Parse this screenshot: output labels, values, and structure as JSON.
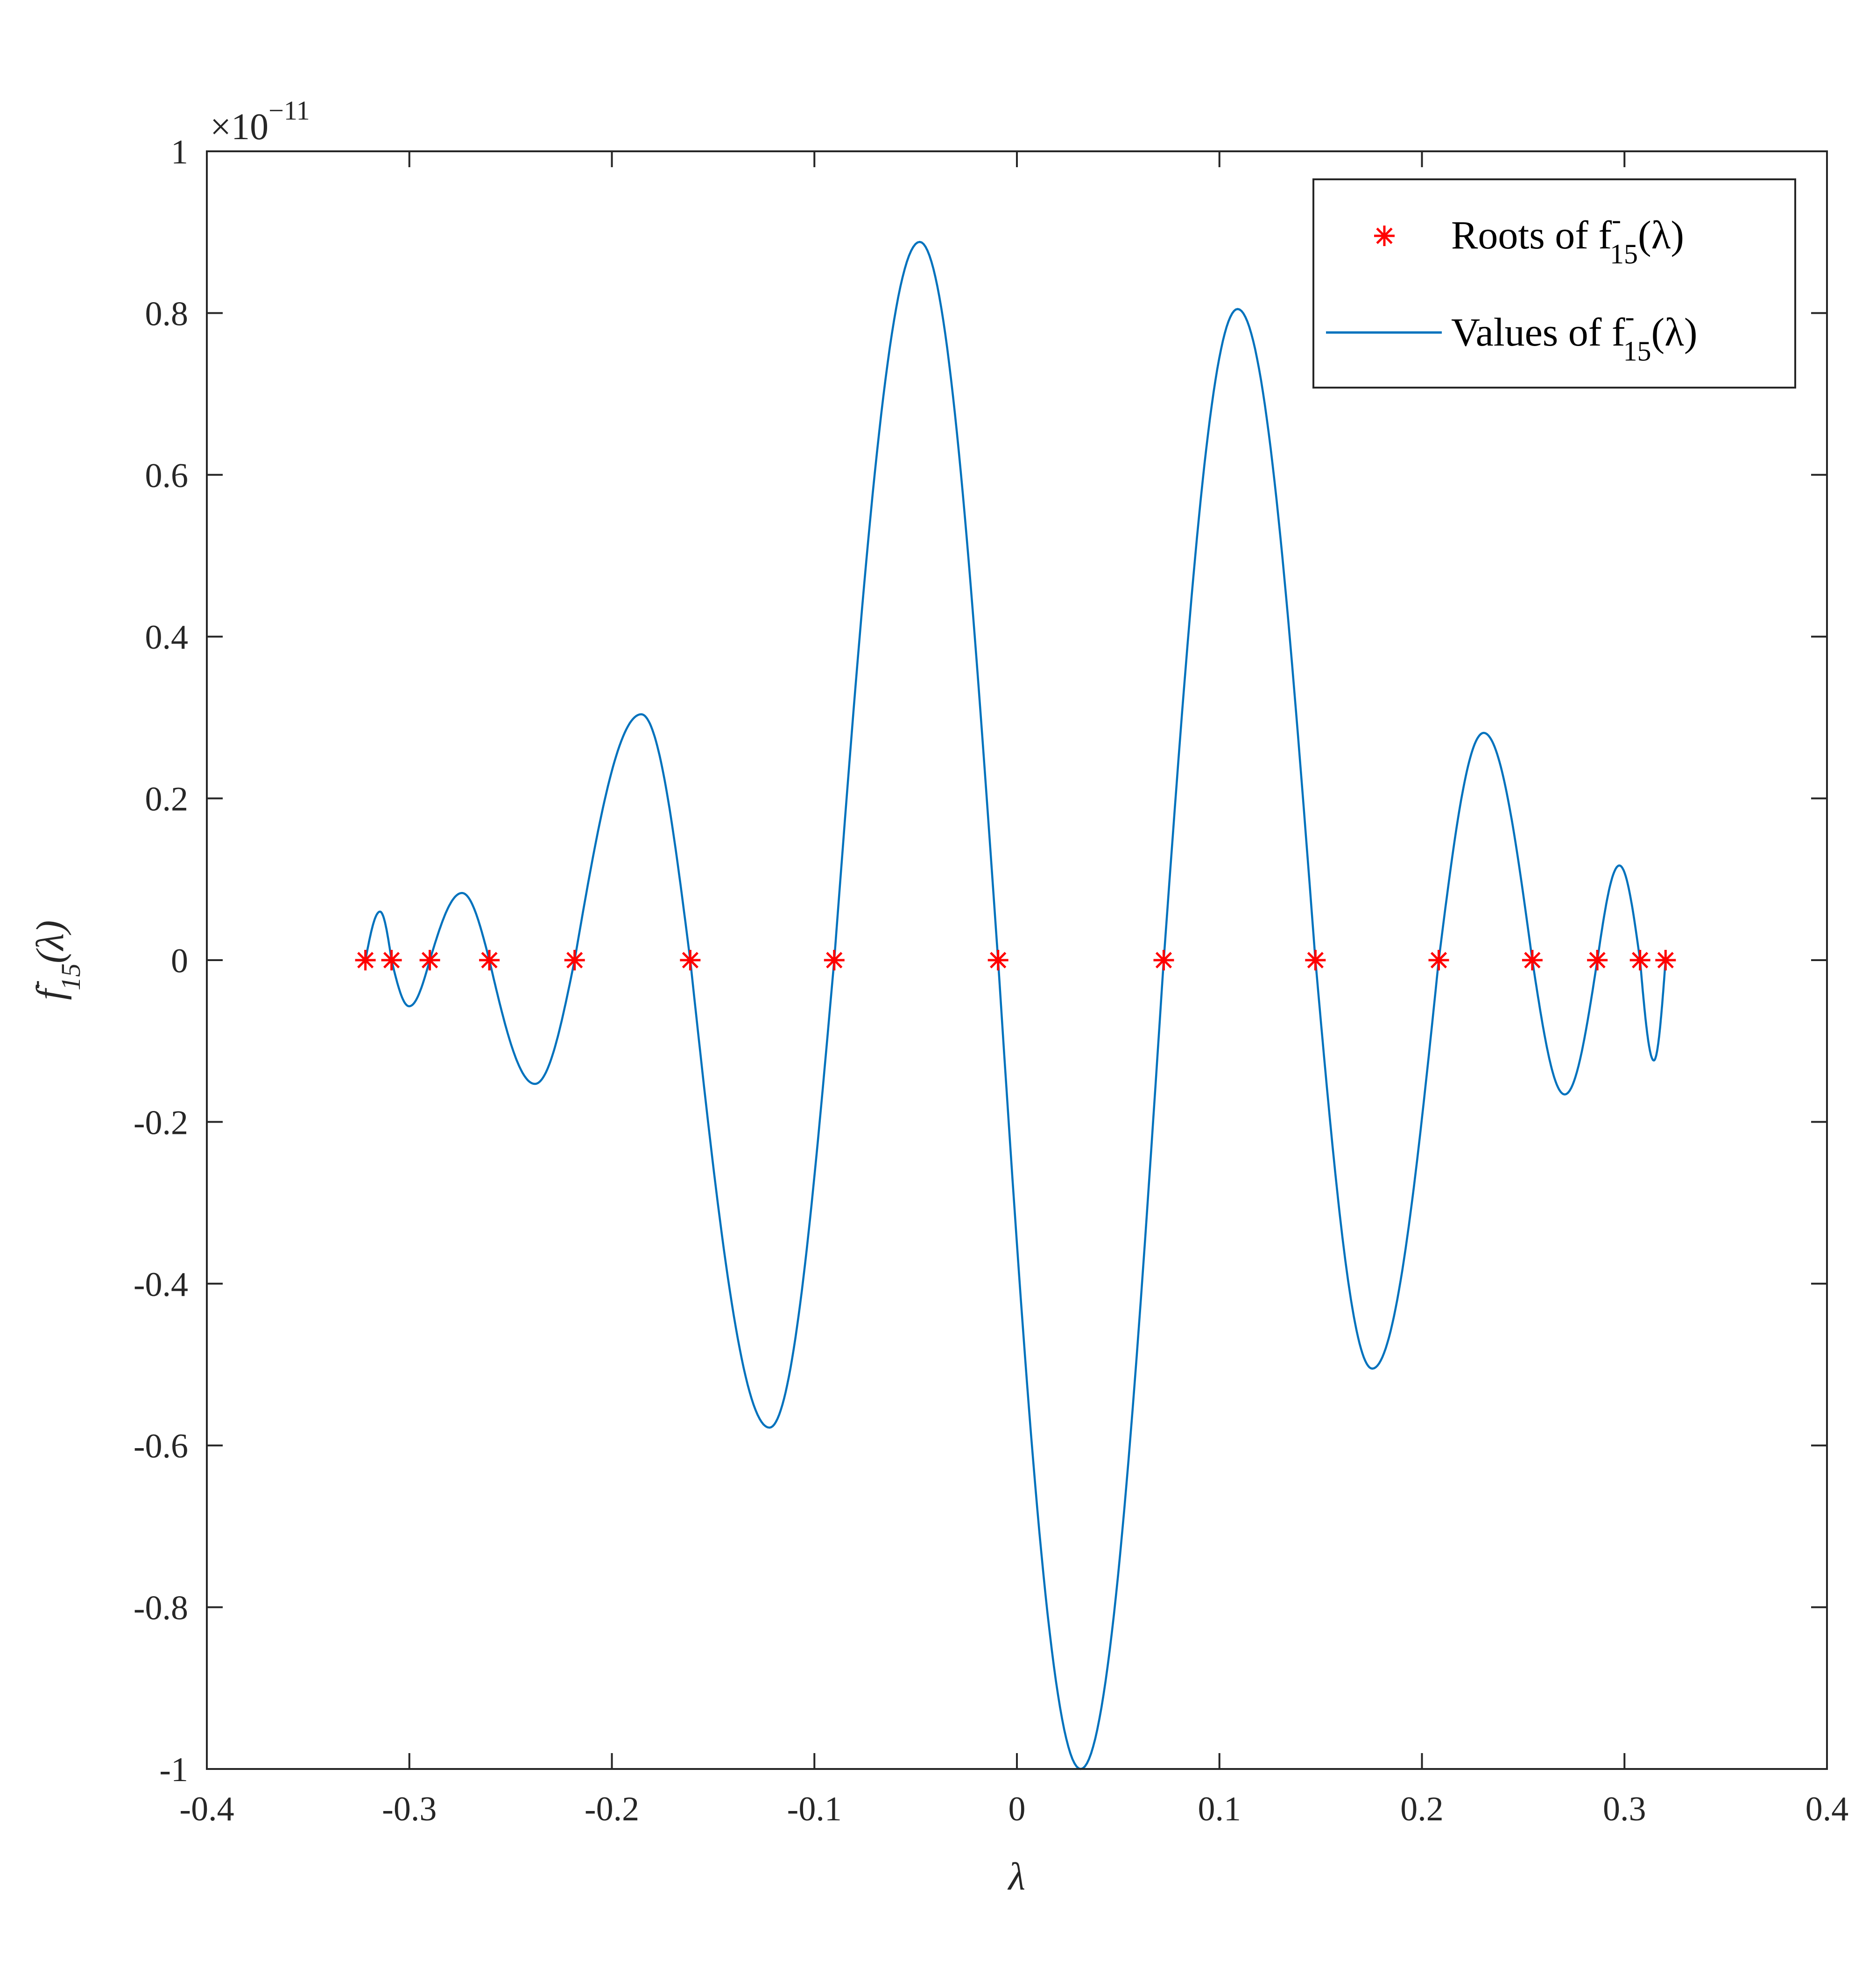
{
  "chart_data": {
    "type": "line",
    "title": "",
    "xlabel": "λ",
    "ylabel": "f⁻₁₅(λ)",
    "xlim": [
      -0.4,
      0.4
    ],
    "ylim": [
      -1,
      1
    ],
    "y_exponent": "×10⁻¹¹",
    "x_ticks": [
      -0.4,
      -0.3,
      -0.2,
      -0.1,
      0,
      0.1,
      0.2,
      0.3,
      0.4
    ],
    "x_tick_labels": [
      "-0.4",
      "-0.3",
      "-0.2",
      "-0.1",
      "0",
      "0.1",
      "0.2",
      "0.3",
      "0.4"
    ],
    "y_ticks": [
      -1,
      -0.8,
      -0.6,
      -0.4,
      -0.2,
      0,
      0.2,
      0.4,
      0.6,
      0.8,
      1
    ],
    "y_tick_labels": [
      "-1",
      "-0.8",
      "-0.6",
      "-0.4",
      "-0.2",
      "0",
      "0.2",
      "0.4",
      "0.6",
      "0.8",
      "1"
    ],
    "grid": false,
    "legend_position": "top-right",
    "colors": {
      "values_line": "#0072BD",
      "roots_marker": "#FF0000",
      "axes": "#262626"
    },
    "series": [
      {
        "name": "Roots of f⁻₁₅(λ)",
        "kind": "scatter",
        "marker": "asterisk",
        "x": [
          -0.3217,
          -0.3088,
          -0.2899,
          -0.2605,
          -0.2184,
          -0.1613,
          -0.0902,
          -0.0093,
          0.0725,
          0.1474,
          0.2083,
          0.2545,
          0.2866,
          0.3077,
          0.3203
        ],
        "y": [
          0,
          0,
          0,
          0,
          0,
          0,
          0,
          0,
          0,
          0,
          0,
          0,
          0,
          0,
          0
        ]
      },
      {
        "name": "Values of f⁻₁₅(λ)",
        "kind": "line",
        "x": [
          -0.3217,
          -0.3145,
          -0.3088,
          -0.3001,
          -0.2899,
          -0.274,
          -0.2605,
          -0.238,
          -0.2184,
          -0.1855,
          -0.1613,
          -0.1222,
          -0.0902,
          -0.048,
          -0.0093,
          0.0315,
          0.0725,
          0.109,
          0.1474,
          0.1755,
          0.2083,
          0.2305,
          0.2545,
          0.2705,
          0.2866,
          0.2975,
          0.3077,
          0.3145,
          0.3203
        ],
        "y": [
          0,
          0.06,
          0,
          -0.057,
          0,
          0.083,
          0,
          -0.153,
          0,
          0.304,
          0,
          -0.578,
          0,
          0.888,
          0,
          -1.0,
          0,
          0.805,
          0,
          -0.505,
          0,
          0.281,
          0,
          -0.166,
          0,
          0.117,
          0,
          -0.124,
          0
        ]
      }
    ],
    "legend": {
      "roots_prefix": "Roots of f",
      "values_prefix": "Values of f",
      "superscript": "-",
      "subscript": "15",
      "suffix": "(λ)"
    }
  }
}
